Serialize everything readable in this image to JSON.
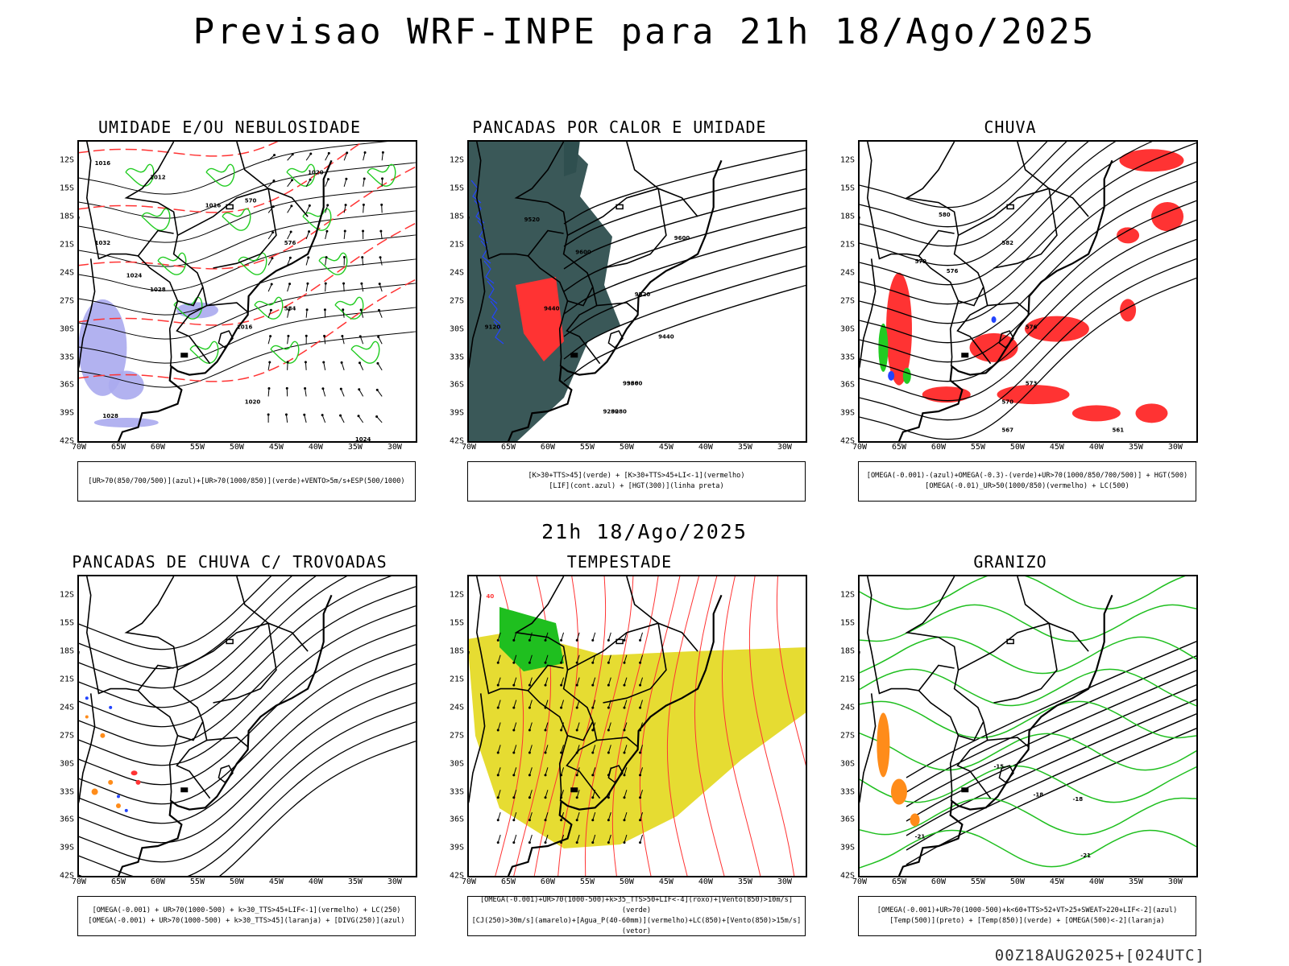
{
  "header": {
    "title": "Previsao WRF-INPE  para 21h 18/Ago/2025",
    "mid_title": "21h 18/Ago/2025",
    "footer": "00Z18AUG2025+[024UTC]"
  },
  "axes": {
    "lon_ticks": [
      "70W",
      "65W",
      "60W",
      "55W",
      "50W",
      "45W",
      "40W",
      "35W",
      "30W"
    ],
    "lat_ticks": [
      "12S",
      "15S",
      "18S",
      "21S",
      "24S",
      "27S",
      "30S",
      "33S",
      "36S",
      "39S",
      "42S"
    ]
  },
  "colors": {
    "frame": "#000000",
    "green": "#22cc22",
    "red": "#ff3333",
    "blue": "#2244ff",
    "purple_blue": "#aaaaee",
    "dark_teal": "#2f4f4f",
    "yellow": "#e6dc32",
    "orange": "#ff8c1a",
    "bright_green": "#1fbf1f"
  },
  "panels": [
    {
      "id": "umidade",
      "title": "UMIDADE E/OU NEBULOSIDADE",
      "legend": [
        "[UR>70(850/700/500)](azul)+[UR>70(1000/850)](verde)+VENTO>5m/s+ESP(500/1000)"
      ],
      "contour_labels": [
        "1012",
        "1016",
        "1020",
        "1024",
        "1028",
        "1032",
        "570",
        "576",
        "584",
        "1016",
        "1020",
        "1024",
        "1028",
        "1016"
      ]
    },
    {
      "id": "pancadas_calor",
      "title": "PANCADAS POR CALOR E UMIDADE",
      "legend": [
        "[K>30+TTS>45](verde) + [K>30+TTS>45+LI<-1](vermelho)",
        "[LIF](cont.azul) + [HGT(300)](linha preta)"
      ],
      "contour_labels": [
        "9600",
        "9600",
        "9520",
        "9440",
        "9360",
        "9280",
        "9520",
        "9440",
        "9360",
        "9280",
        "9120"
      ]
    },
    {
      "id": "chuva",
      "title": "CHUVA",
      "legend": [
        "[OMEGA(-0.001)-(azul)+OMEGA(-0.3)-(verde)+UR>70(1000/850/700/500)] + HGT(500)",
        "[OMEGA(-0.01)_UR>50(1000/850)(vermelho) + LC(500)"
      ],
      "contour_labels": [
        "580",
        "582",
        "576",
        "576",
        "573",
        "570",
        "567",
        "561",
        "579"
      ]
    },
    {
      "id": "trovoadas",
      "title": "PANCADAS DE CHUVA C/ TROVOADAS",
      "legend": [
        "[OMEGA(-0.001) + UR>70(1000-500) + k>30_TTS>45+LIF<-1](vermelho) + LC(250)",
        "[OMEGA(-0.001) + UR>70(1000-500) + k>30_TTS>45](laranja) + [DIVG(250)](azul)"
      ],
      "contour_labels": []
    },
    {
      "id": "tempestade",
      "title": "TEMPESTADE",
      "legend": [
        "[OMEGA(-0.001)+UR>70(1000-500)+k>35_TTS>50+LIF<-4](roxo)+[Vento(850)>10m/s](verde)",
        "[CJ(250)>30m/s](amarelo)+[Agua_P(40-60mm)](vermelho)+LC(850)+[Vento(850)>15m/s](vetor)"
      ],
      "contour_labels": [
        "40"
      ]
    },
    {
      "id": "granizo",
      "title": "GRANIZO",
      "legend": [
        "[OMEGA(-0.001)+UR>70(1000-500)+k<60+TTS>52+VT>25+SWEAT>220+LIF<-2](azul)",
        "[Temp(500)](preto) + [Temp(850)](verde) + [OMEGA(500)<-2](laranja)"
      ],
      "contour_labels": [
        "-15",
        "-18",
        "-18",
        "-21",
        "-21"
      ]
    }
  ]
}
